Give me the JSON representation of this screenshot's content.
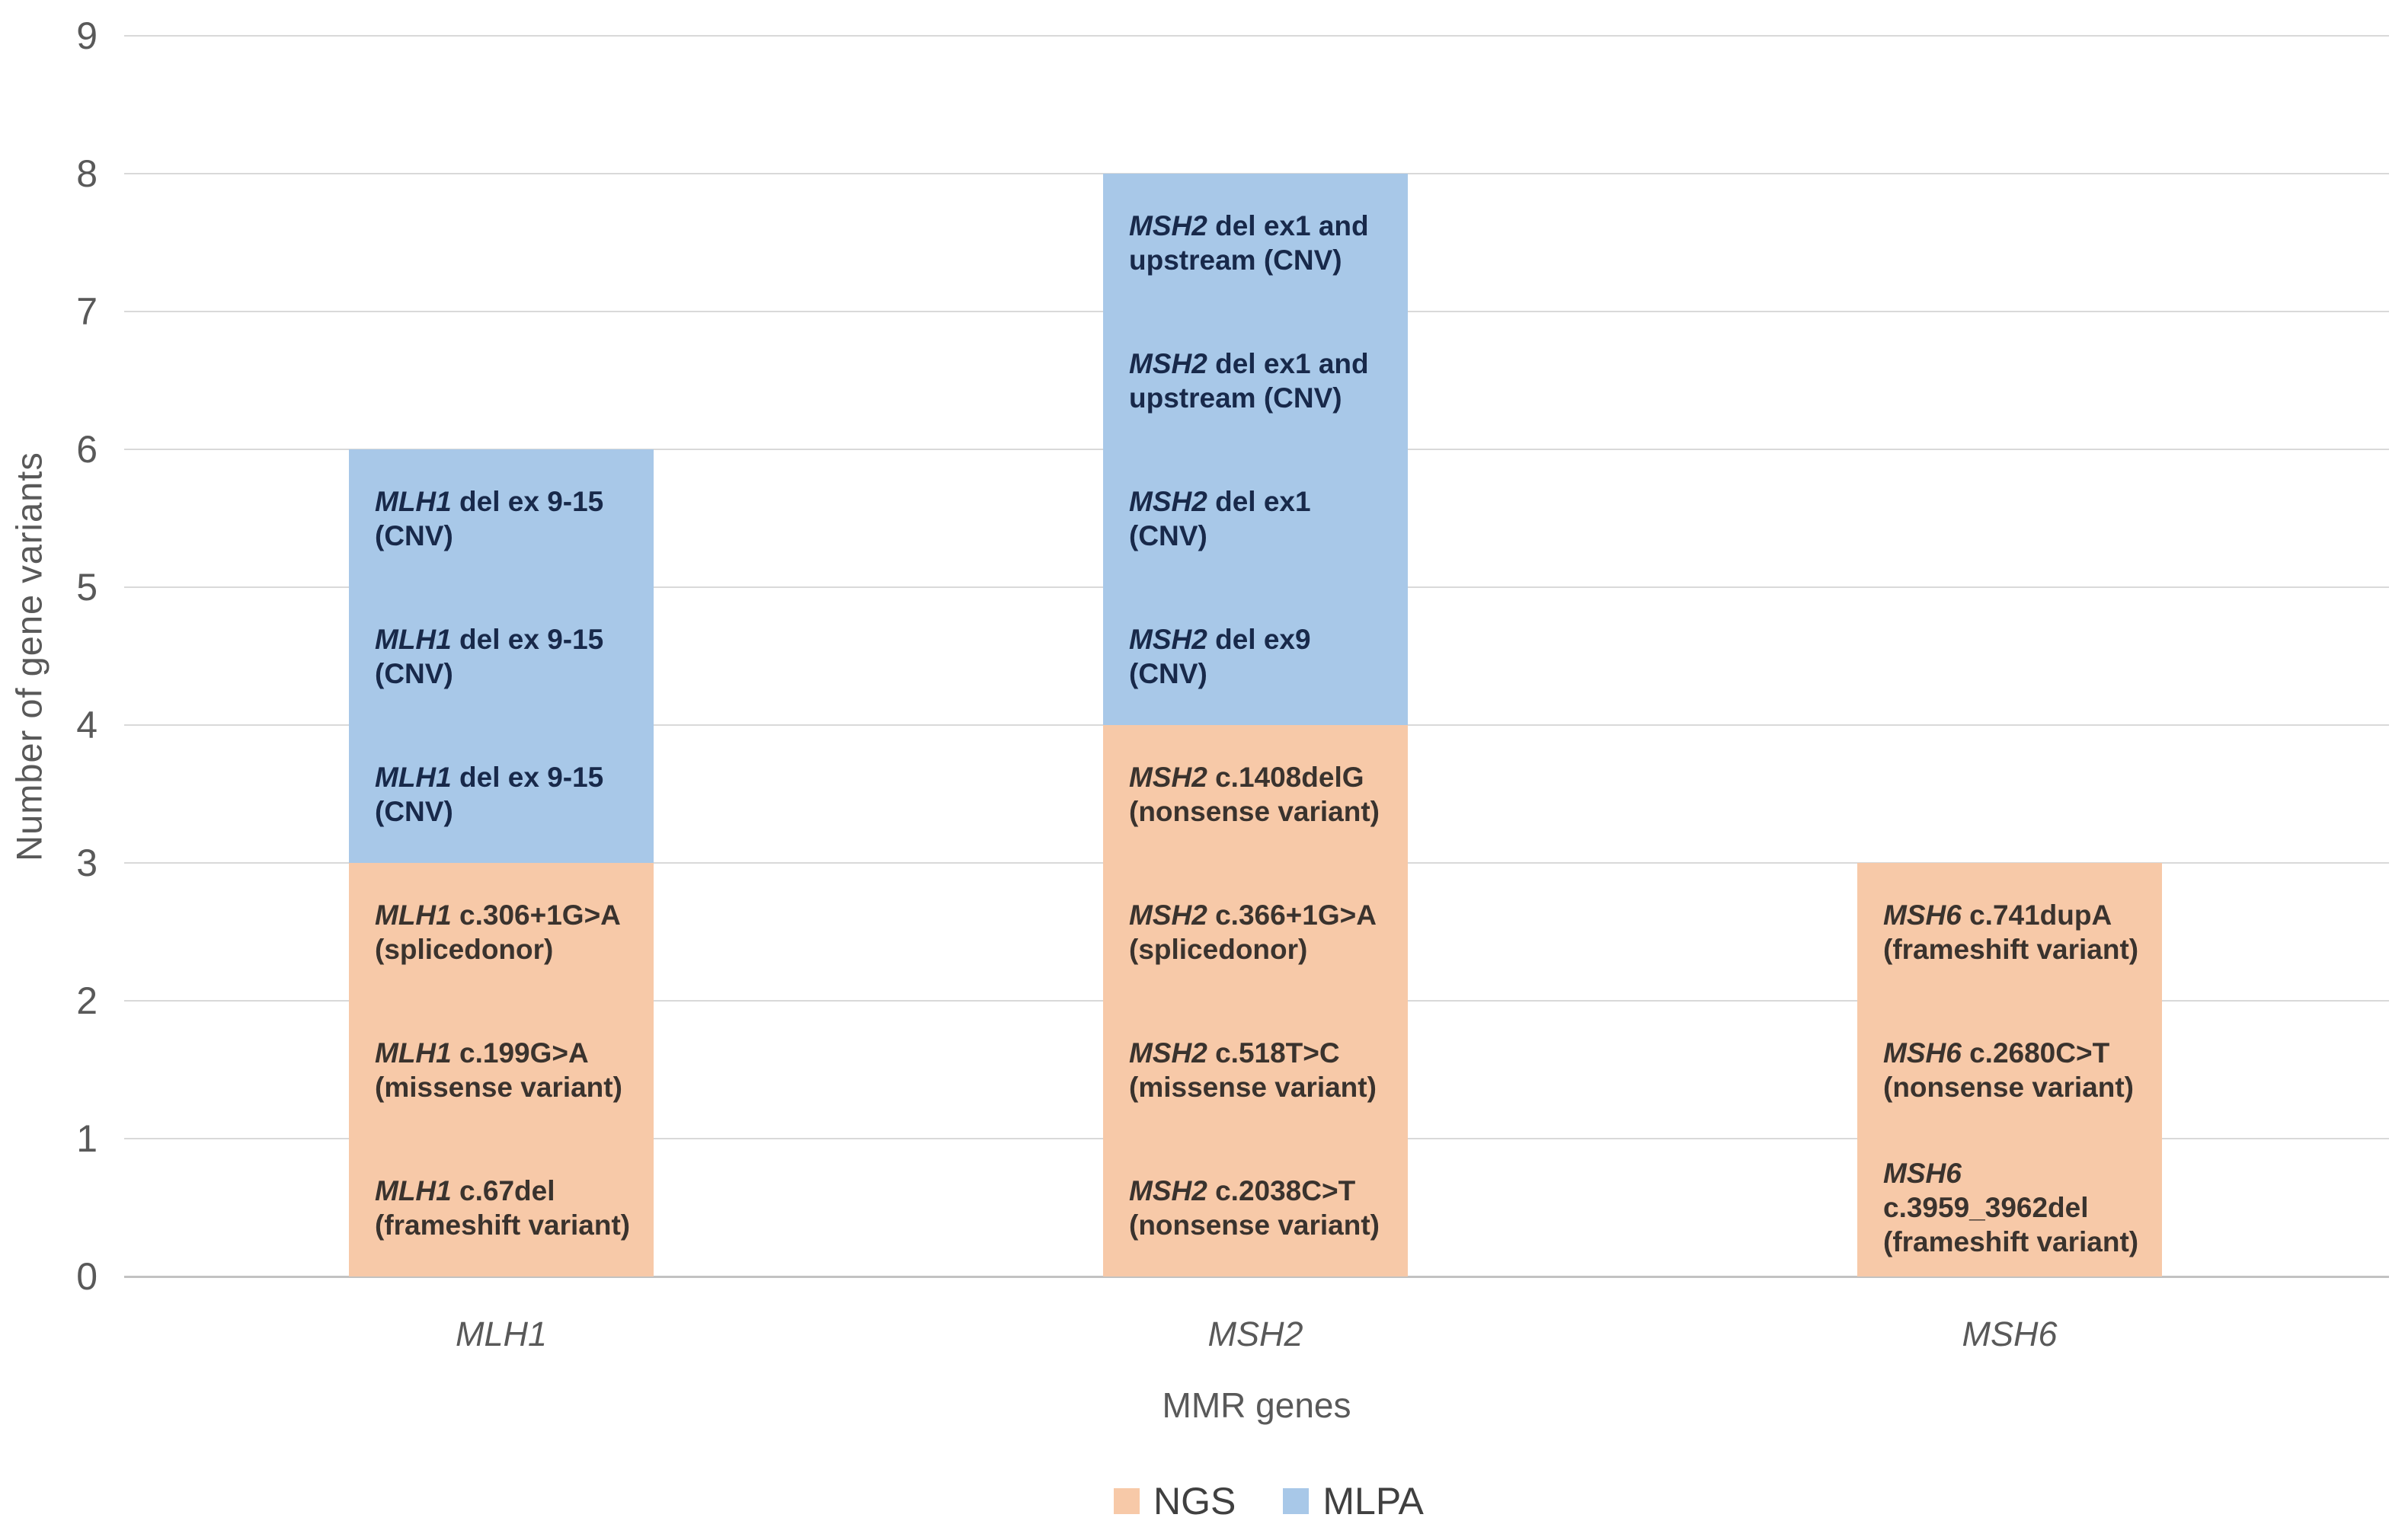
{
  "figure": {
    "background": "#ffffff",
    "y_axis": {
      "title": "Number of gene variants",
      "tick_labels": [
        "0",
        "1",
        "2",
        "3",
        "4",
        "5",
        "6",
        "7",
        "8",
        "9"
      ],
      "min": 0,
      "max": 9
    },
    "x_axis": {
      "title": "MMR genes",
      "categories": [
        "MLH1",
        "MSH2",
        "MSH6"
      ]
    },
    "colors": {
      "ngs_fill": "#f7c9a8",
      "mlpa_fill": "#a8c8e8",
      "gridline": "#d9d9d9",
      "axis_text": "#595959",
      "legend_text": "#404040",
      "label_on_ngs": "#3a332e",
      "label_on_mlpa": "#18294a"
    }
  },
  "chart_data": {
    "type": "bar",
    "stacked": true,
    "title": "",
    "xlabel": "MMR genes",
    "ylabel": "Number of gene variants",
    "ylim": [
      0,
      9
    ],
    "grid": true,
    "legend_position": "bottom",
    "categories": [
      "MLH1",
      "MSH2",
      "MSH6"
    ],
    "series": [
      {
        "name": "NGS",
        "color": "#f7c9a8",
        "text_color": "#3a332e",
        "values": [
          3,
          4,
          3
        ]
      },
      {
        "name": "MLPA",
        "color": "#a8c8e8",
        "text_color": "#18294a",
        "values": [
          3,
          4,
          0
        ]
      }
    ],
    "bars": [
      {
        "category": "MLH1",
        "segments": [
          {
            "series": "NGS",
            "value": 1,
            "lines": [
              [
                {
                  "t": "MLH1",
                  "i": 1
                },
                {
                  "t": " c.67del"
                }
              ],
              [
                {
                  "t": "(frameshift variant)"
                }
              ]
            ]
          },
          {
            "series": "NGS",
            "value": 1,
            "lines": [
              [
                {
                  "t": "MLH1",
                  "i": 1
                },
                {
                  "t": " c.199G>A"
                }
              ],
              [
                {
                  "t": "(missense variant)"
                }
              ]
            ]
          },
          {
            "series": "NGS",
            "value": 1,
            "lines": [
              [
                {
                  "t": "MLH1",
                  "i": 1
                },
                {
                  "t": " c.306+1G>A"
                }
              ],
              [
                {
                  "t": "(splicedonor)"
                }
              ]
            ]
          },
          {
            "series": "MLPA",
            "value": 1,
            "lines": [
              [
                {
                  "t": "MLH1",
                  "i": 1
                },
                {
                  "t": " del ex 9-15"
                }
              ],
              [
                {
                  "t": "(CNV)"
                }
              ]
            ]
          },
          {
            "series": "MLPA",
            "value": 1,
            "lines": [
              [
                {
                  "t": "MLH1",
                  "i": 1
                },
                {
                  "t": " del ex 9-15"
                }
              ],
              [
                {
                  "t": "(CNV)"
                }
              ]
            ]
          },
          {
            "series": "MLPA",
            "value": 1,
            "lines": [
              [
                {
                  "t": "MLH1",
                  "i": 1
                },
                {
                  "t": " del ex 9-15"
                }
              ],
              [
                {
                  "t": "(CNV)"
                }
              ]
            ]
          }
        ]
      },
      {
        "category": "MSH2",
        "segments": [
          {
            "series": "NGS",
            "value": 1,
            "lines": [
              [
                {
                  "t": "MSH2",
                  "i": 1
                },
                {
                  "t": " c.2038C>T"
                }
              ],
              [
                {
                  "t": "(nonsense variant)"
                }
              ]
            ]
          },
          {
            "series": "NGS",
            "value": 1,
            "lines": [
              [
                {
                  "t": "MSH2",
                  "i": 1
                },
                {
                  "t": " c.518T>C"
                }
              ],
              [
                {
                  "t": "(missense variant)"
                }
              ]
            ]
          },
          {
            "series": "NGS",
            "value": 1,
            "lines": [
              [
                {
                  "t": "MSH2",
                  "i": 1
                },
                {
                  "t": " c.366+1G>A"
                }
              ],
              [
                {
                  "t": "(splicedonor)"
                }
              ]
            ]
          },
          {
            "series": "NGS",
            "value": 1,
            "lines": [
              [
                {
                  "t": "MSH2",
                  "i": 1
                },
                {
                  "t": " c.1408delG"
                }
              ],
              [
                {
                  "t": "(nonsense variant)"
                }
              ]
            ]
          },
          {
            "series": "MLPA",
            "value": 1,
            "lines": [
              [
                {
                  "t": "MSH2",
                  "i": 1
                },
                {
                  "t": " del ex9"
                }
              ],
              [
                {
                  "t": "(CNV)"
                }
              ]
            ]
          },
          {
            "series": "MLPA",
            "value": 1,
            "lines": [
              [
                {
                  "t": "MSH2",
                  "i": 1
                },
                {
                  "t": " del ex1"
                }
              ],
              [
                {
                  "t": "(CNV)"
                }
              ]
            ]
          },
          {
            "series": "MLPA",
            "value": 1,
            "lines": [
              [
                {
                  "t": "MSH2",
                  "i": 1
                },
                {
                  "t": " del ex1 and"
                }
              ],
              [
                {
                  "t": "upstream (CNV)"
                }
              ]
            ]
          },
          {
            "series": "MLPA",
            "value": 1,
            "lines": [
              [
                {
                  "t": "MSH2",
                  "i": 1
                },
                {
                  "t": " del ex1 and"
                }
              ],
              [
                {
                  "t": "upstream (CNV)"
                }
              ]
            ]
          }
        ]
      },
      {
        "category": "MSH6",
        "segments": [
          {
            "series": "NGS",
            "value": 1,
            "lines": [
              [
                {
                  "t": "MSH6",
                  "i": 1
                }
              ],
              [
                {
                  "t": "c.3959_3962del"
                }
              ],
              [
                {
                  "t": "(frameshift variant)"
                }
              ]
            ]
          },
          {
            "series": "NGS",
            "value": 1,
            "lines": [
              [
                {
                  "t": "MSH6",
                  "i": 1
                },
                {
                  "t": " c.2680C>T"
                }
              ],
              [
                {
                  "t": "(nonsense variant)"
                }
              ]
            ]
          },
          {
            "series": "NGS",
            "value": 1,
            "lines": [
              [
                {
                  "t": "MSH6",
                  "i": 1
                },
                {
                  "t": " c.741dupA"
                }
              ],
              [
                {
                  "t": "(frameshift variant)"
                }
              ]
            ]
          }
        ]
      }
    ]
  }
}
